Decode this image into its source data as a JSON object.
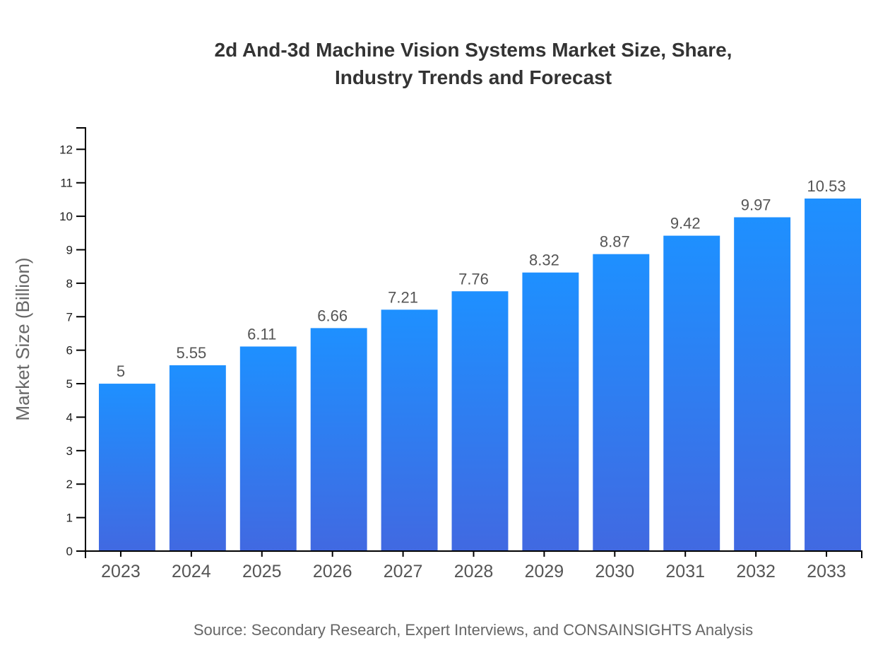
{
  "chart_data": {
    "type": "bar",
    "title_lines": [
      "2d And-3d Machine Vision Systems Market Size, Share,",
      "Industry Trends and Forecast"
    ],
    "xlabel": "",
    "ylabel": "Market Size (Billion)",
    "categories": [
      "2023",
      "2024",
      "2025",
      "2026",
      "2027",
      "2028",
      "2029",
      "2030",
      "2031",
      "2032",
      "2033"
    ],
    "values": [
      5,
      5.55,
      6.11,
      6.66,
      7.21,
      7.76,
      8.32,
      8.87,
      9.42,
      9.97,
      10.53
    ],
    "data_labels": [
      "5",
      "5.55",
      "6.11",
      "6.66",
      "7.21",
      "7.76",
      "8.32",
      "8.87",
      "9.42",
      "9.97",
      "10.53"
    ],
    "yticks": [
      "0",
      "1",
      "2",
      "3",
      "4",
      "5",
      "6",
      "7",
      "8",
      "9",
      "10",
      "11",
      "12"
    ],
    "ylim": [
      0,
      12.64
    ],
    "grid": false,
    "legend": "none",
    "colors": {
      "bar_top": "#1E90FF",
      "bar_bottom": "#4169E1"
    },
    "source": "Source: Secondary Research, Expert Interviews, and CONSAINSIGHTS Analysis"
  }
}
